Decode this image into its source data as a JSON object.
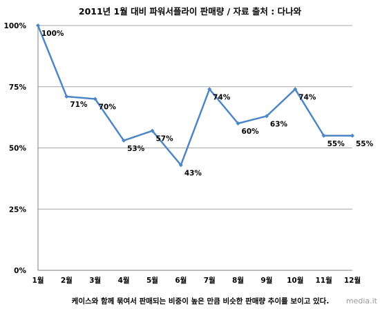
{
  "chart_data": {
    "type": "line",
    "title": "2011년 1월 대비 파워서플라이 판매량 / 자료 출처 : 다나와",
    "caption": "케이스와 함께 묶여서 판매되는 비중이 높은 만큼 비슷한 판매량 추이를 보이고 있다.",
    "categories": [
      "1월",
      "2월",
      "3월",
      "4월",
      "5월",
      "6월",
      "7월",
      "8월",
      "9월",
      "10월",
      "11월",
      "12월"
    ],
    "values": [
      100,
      71,
      70,
      53,
      57,
      43,
      74,
      60,
      63,
      74,
      55,
      55
    ],
    "data_labels": [
      "100%",
      "71%",
      "70%",
      "53%",
      "57%",
      "43%",
      "74%",
      "60%",
      "63%",
      "74%",
      "55%",
      "55%"
    ],
    "y_ticks": [
      "0%",
      "25%",
      "50%",
      "75%",
      "100%"
    ],
    "y_tick_values": [
      0,
      25,
      50,
      75,
      100
    ],
    "ylim": [
      0,
      100
    ],
    "grid": true,
    "legend": "none",
    "line_color": "#4d86c6",
    "grid_color": "#a6a6a6"
  },
  "watermark": "media.it"
}
